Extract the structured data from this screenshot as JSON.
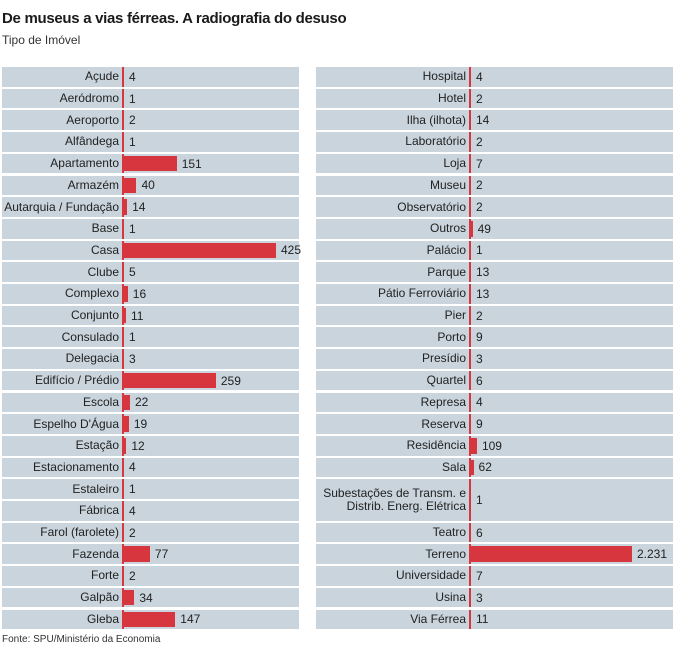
{
  "title": "De museus a vias férreas. A radiografia do desuso",
  "subtitle": "Tipo de Imóvel",
  "source": "Fonte: SPU/Ministério da Economia",
  "colors": {
    "bar": "#d7363f",
    "row_bg": "#c9d4dc"
  },
  "chart_data": [
    {
      "type": "bar",
      "orientation": "horizontal",
      "categories": [
        "Açude",
        "Aeródromo",
        "Aeroporto",
        "Alfândega",
        "Apartamento",
        "Armazém",
        "Autarquia / Fundação",
        "Base",
        "Casa",
        "Clube",
        "Complexo",
        "Conjunto",
        "Consulado",
        "Delegacia",
        "Edifício / Prédio",
        "Escola",
        "Espelho D'Água",
        "Estação",
        "Estacionamento",
        "Estaleiro",
        "Fábrica",
        "Farol (farolete)",
        "Fazenda",
        "Forte",
        "Galpão",
        "Gleba"
      ],
      "values": [
        4,
        1,
        2,
        1,
        151,
        40,
        14,
        1,
        425,
        5,
        16,
        11,
        1,
        3,
        259,
        22,
        19,
        12,
        4,
        1,
        4,
        2,
        77,
        2,
        34,
        147
      ],
      "value_labels": [
        "4",
        "1",
        "2",
        "1",
        "151",
        "40",
        "14",
        "1",
        "425",
        "5",
        "16",
        "11",
        "1",
        "3",
        "259",
        "22",
        "19",
        "12",
        "4",
        "1",
        "4",
        "2",
        "77",
        "2",
        "34",
        "147"
      ],
      "xlim": [
        0,
        425
      ]
    },
    {
      "type": "bar",
      "orientation": "horizontal",
      "categories": [
        "Hospital",
        "Hotel",
        "Ilha (ilhota)",
        "Laboratório",
        "Loja",
        "Museu",
        "Observatório",
        "Outros",
        "Palácio",
        "Parque",
        "Pátio Ferroviário",
        "Pier",
        "Porto",
        "Presídio",
        "Quartel",
        "Represa",
        "Reserva",
        "Residência",
        "Sala",
        "Subestações de Transm. e Distrib. Energ. Elétrica",
        "Teatro",
        "Terreno",
        "Universidade",
        "Usina",
        "Via Férrea"
      ],
      "values": [
        4,
        2,
        14,
        2,
        7,
        2,
        2,
        49,
        1,
        13,
        13,
        2,
        9,
        3,
        6,
        4,
        9,
        109,
        62,
        1,
        6,
        2231,
        7,
        3,
        11
      ],
      "value_labels": [
        "4",
        "2",
        "14",
        "2",
        "7",
        "2",
        "2",
        "49",
        "1",
        "13",
        "13",
        "2",
        "9",
        "3",
        "6",
        "4",
        "9",
        "109",
        "62",
        "1",
        "6",
        "2.231",
        "7",
        "3",
        "11"
      ],
      "xlim": [
        0,
        2231
      ]
    }
  ]
}
